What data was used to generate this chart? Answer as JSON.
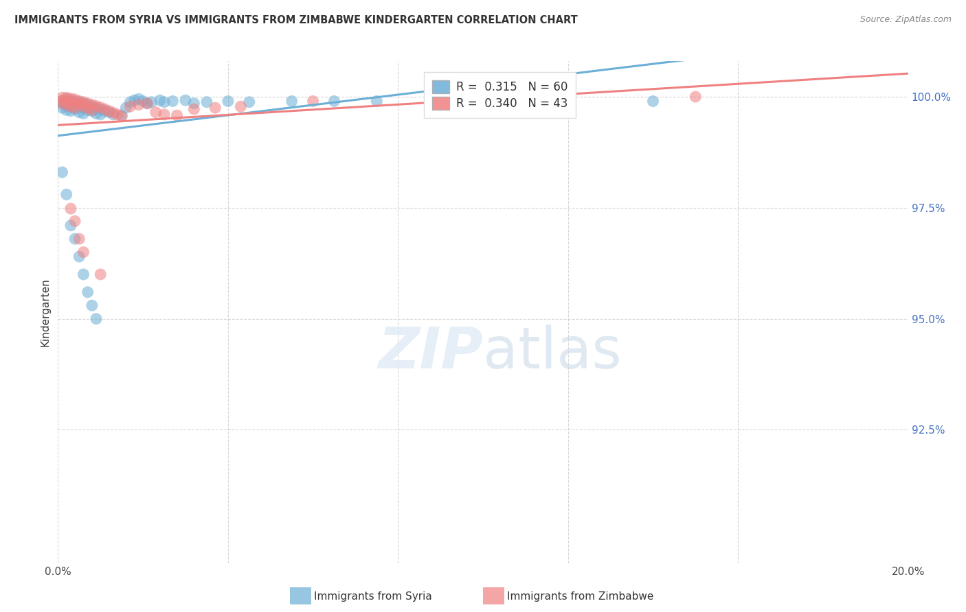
{
  "title": "IMMIGRANTS FROM SYRIA VS IMMIGRANTS FROM ZIMBABWE KINDERGARTEN CORRELATION CHART",
  "source": "Source: ZipAtlas.com",
  "ylabel": "Kindergarten",
  "xlim": [
    0.0,
    0.2
  ],
  "ylim": [
    0.895,
    1.008
  ],
  "syria_color": "#6baed6",
  "zimbabwe_color": "#f08080",
  "syria_R": 0.315,
  "syria_N": 60,
  "zimbabwe_R": 0.34,
  "zimbabwe_N": 43,
  "background_color": "#ffffff",
  "grid_color": "#cccccc",
  "legend_label_syria": "Immigrants from Syria",
  "legend_label_zimbabwe": "Immigrants from Zimbabwe",
  "syria_x": [
    0.001,
    0.001,
    0.001,
    0.002,
    0.002,
    0.002,
    0.002,
    0.003,
    0.003,
    0.003,
    0.003,
    0.004,
    0.004,
    0.004,
    0.005,
    0.005,
    0.005,
    0.006,
    0.006,
    0.006,
    0.007,
    0.007,
    0.008,
    0.008,
    0.009,
    0.009,
    0.01,
    0.01,
    0.011,
    0.012,
    0.013,
    0.015,
    0.016,
    0.017,
    0.018,
    0.019,
    0.02,
    0.021,
    0.022,
    0.024,
    0.025,
    0.027,
    0.03,
    0.032,
    0.035,
    0.04,
    0.045,
    0.055,
    0.065,
    0.075,
    0.001,
    0.002,
    0.003,
    0.004,
    0.005,
    0.006,
    0.007,
    0.008,
    0.009,
    0.14
  ],
  "syria_y": [
    0.999,
    0.9985,
    0.9975,
    0.9995,
    0.9988,
    0.998,
    0.997,
    0.9992,
    0.9985,
    0.9978,
    0.9968,
    0.999,
    0.9982,
    0.9972,
    0.9988,
    0.9979,
    0.9965,
    0.9985,
    0.9975,
    0.9962,
    0.9982,
    0.997,
    0.9978,
    0.9968,
    0.9975,
    0.9962,
    0.9972,
    0.996,
    0.9968,
    0.9965,
    0.996,
    0.9958,
    0.9975,
    0.9988,
    0.9992,
    0.9995,
    0.999,
    0.9985,
    0.9988,
    0.9992,
    0.9988,
    0.999,
    0.9992,
    0.9985,
    0.9988,
    0.999,
    0.9988,
    0.999,
    0.999,
    0.999,
    0.983,
    0.978,
    0.971,
    0.968,
    0.964,
    0.96,
    0.956,
    0.953,
    0.95,
    0.999
  ],
  "zimbabwe_x": [
    0.001,
    0.001,
    0.001,
    0.002,
    0.002,
    0.002,
    0.003,
    0.003,
    0.003,
    0.004,
    0.004,
    0.004,
    0.005,
    0.005,
    0.006,
    0.006,
    0.007,
    0.007,
    0.008,
    0.008,
    0.009,
    0.01,
    0.011,
    0.012,
    0.013,
    0.014,
    0.015,
    0.017,
    0.019,
    0.021,
    0.023,
    0.025,
    0.028,
    0.032,
    0.037,
    0.043,
    0.003,
    0.004,
    0.005,
    0.006,
    0.06,
    0.15,
    0.01
  ],
  "zimbabwe_y": [
    0.9998,
    0.9992,
    0.9985,
    0.9998,
    0.999,
    0.9982,
    0.9996,
    0.9988,
    0.9978,
    0.9994,
    0.9986,
    0.9975,
    0.999,
    0.9982,
    0.9988,
    0.9978,
    0.9985,
    0.9974,
    0.9982,
    0.997,
    0.9979,
    0.9976,
    0.9972,
    0.9968,
    0.9964,
    0.996,
    0.9956,
    0.9978,
    0.9982,
    0.9985,
    0.9965,
    0.996,
    0.9958,
    0.9972,
    0.9975,
    0.9978,
    0.9748,
    0.972,
    0.968,
    0.965,
    0.999,
    1.0,
    0.96
  ]
}
